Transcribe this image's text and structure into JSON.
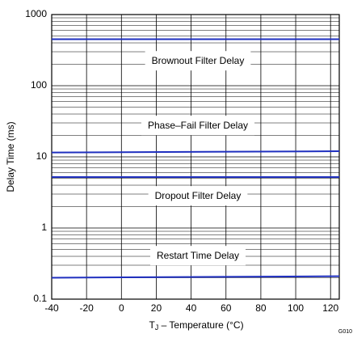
{
  "chart_data": {
    "type": "line",
    "log_y": true,
    "grid": true,
    "minor_grid": true,
    "ylabel": "Delay Time (ms)",
    "xlabel_main": "T",
    "xlabel_sub": "J",
    "xlabel_rest": " – Temperature (°C)",
    "note": "G010",
    "x": [
      -40,
      125
    ],
    "xlim": [
      -40,
      125
    ],
    "xticks": [
      -40,
      -20,
      0,
      20,
      40,
      60,
      80,
      100,
      120
    ],
    "ylim": [
      0.1,
      1000
    ],
    "yticks": [
      0.1,
      1,
      10,
      100,
      1000
    ],
    "series": [
      {
        "name": "Brownout Filter Delay",
        "color": "#1f2fbf",
        "values": [
          450,
          450
        ]
      },
      {
        "name": "Phase–Fail Filter Delay",
        "color": "#1f2fbf",
        "values": [
          11.5,
          12
        ]
      },
      {
        "name": "Dropout Filter Delay",
        "color": "#1f2fbf",
        "values": [
          5.2,
          5.2
        ]
      },
      {
        "name": "Restart Time Delay",
        "color": "#1f2fbf",
        "values": [
          0.2,
          0.21
        ]
      }
    ]
  }
}
